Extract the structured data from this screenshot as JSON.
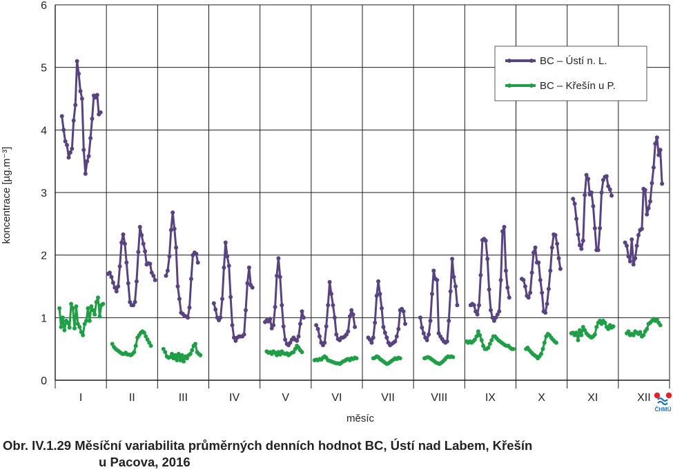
{
  "caption": {
    "line1": "Obr. IV.1.29  Měsíční variabilita průměrných denních hodnot BC, Ústí nad Labem, Křešín",
    "line2": "u Pacova, 2016"
  },
  "logo": {
    "text": "ČHMÚ"
  },
  "chart_data": {
    "type": "line",
    "xlabel": "měsíc",
    "ylabel": "koncentrace [µg.m⁻³]",
    "ylim": [
      0,
      6
    ],
    "yticks": [
      0,
      1,
      2,
      3,
      4,
      5,
      6
    ],
    "months": [
      "I",
      "II",
      "III",
      "IV",
      "V",
      "VI",
      "VII",
      "VIII",
      "IX",
      "X",
      "XI",
      "XII"
    ],
    "month_days": [
      31,
      29,
      31,
      30,
      31,
      30,
      31,
      31,
      30,
      31,
      30,
      31
    ],
    "grid": true,
    "legend_position": "top-right",
    "series": [
      {
        "name": "BC – Ústí n. L.",
        "color": "#584380",
        "segments": [
          {
            "month": 1,
            "values": [
              4.22,
              4.0,
              3.82,
              3.76,
              3.56,
              3.64,
              3.7,
              4.15,
              4.4,
              5.1,
              4.9,
              4.62,
              4.5,
              3.68,
              3.3,
              3.5,
              3.58,
              3.87,
              4.18,
              4.55,
              4.52,
              4.56,
              4.25,
              4.28
            ]
          },
          {
            "month": 2,
            "values": [
              1.7,
              1.72,
              1.65,
              1.56,
              1.48,
              1.42,
              1.5,
              1.82,
              2.2,
              2.33,
              2.18,
              1.88,
              1.55,
              1.25,
              1.2,
              1.2,
              1.25,
              1.58,
              2.05,
              2.45,
              2.32,
              2.18,
              2.06,
              1.85,
              1.87,
              1.86,
              1.72,
              1.67,
              1.6
            ]
          },
          {
            "month": 3,
            "values": [
              1.67,
              1.75,
              1.98,
              2.4,
              2.68,
              2.42,
              2.12,
              1.5,
              1.3,
              1.08,
              1.06,
              1.03,
              1.02,
              1.0,
              1.16,
              1.62,
              2.0,
              2.04,
              2.02,
              1.88
            ]
          },
          {
            "month": 4,
            "values": [
              1.23,
              1.13,
              1.0,
              0.96,
              1.0,
              1.3,
              1.8,
              2.2,
              1.98,
              1.83,
              1.33,
              0.88,
              0.68,
              0.63,
              0.68,
              0.7,
              0.7,
              0.7,
              0.73,
              1.12,
              1.55,
              1.8,
              1.52,
              1.48
            ]
          },
          {
            "month": 5,
            "values": [
              0.93,
              0.96,
              0.94,
              0.98,
              0.83,
              0.88,
              1.17,
              1.67,
              1.95,
              1.65,
              1.2,
              0.86,
              0.65,
              0.58,
              0.56,
              0.6,
              0.65,
              0.68,
              0.65,
              0.63,
              0.7,
              0.9,
              1.1,
              1.0
            ]
          },
          {
            "month": 6,
            "values": [
              0.88,
              0.82,
              0.7,
              0.6,
              0.56,
              0.6,
              0.86,
              1.2,
              1.57,
              1.38,
              1.2,
              1.0,
              0.73,
              0.66,
              0.64,
              0.68,
              0.68,
              0.7,
              0.73,
              0.78,
              1.02,
              1.12,
              1.05,
              0.85
            ]
          },
          {
            "month": 7,
            "values": [
              0.68,
              0.65,
              0.6,
              0.68,
              0.92,
              1.35,
              1.58,
              1.38,
              1.15,
              0.85,
              0.76,
              0.68,
              0.6,
              0.56,
              0.58,
              0.6,
              0.62,
              0.7,
              0.82,
              1.12,
              1.14,
              1.1,
              0.9
            ]
          },
          {
            "month": 8,
            "values": [
              1.0,
              0.84,
              0.75,
              0.68,
              0.64,
              0.73,
              0.95,
              1.38,
              1.75,
              1.62,
              1.6,
              0.75,
              0.7,
              0.66,
              0.62,
              0.6,
              0.62,
              0.95,
              1.42,
              1.94,
              1.65,
              1.5,
              1.2
            ]
          },
          {
            "month": 9,
            "values": [
              1.2,
              1.22,
              1.2,
              1.1,
              1.05,
              1.2,
              1.68,
              2.24,
              2.26,
              2.23,
              1.94,
              1.45,
              1.12,
              1.0,
              0.95,
              1.0,
              1.05,
              1.1,
              1.6,
              2.38,
              2.45,
              1.75,
              1.48,
              1.32
            ]
          },
          {
            "month": 10,
            "values": [
              1.62,
              1.6,
              1.5,
              1.35,
              1.32,
              1.4,
              1.72,
              2.04,
              2.12,
              1.88,
              1.88,
              1.6,
              1.4,
              1.1,
              1.08,
              1.22,
              1.46,
              1.75,
              2.12,
              2.33,
              2.32,
              2.18,
              1.95,
              1.78
            ]
          },
          {
            "month": 11,
            "values": [
              2.9,
              2.82,
              2.58,
              2.33,
              2.16,
              2.1,
              2.23,
              2.96,
              3.28,
              3.22,
              2.97,
              3.0,
              2.78,
              2.43,
              2.08,
              2.08,
              2.43,
              3.0,
              3.2,
              3.25,
              3.26,
              3.1,
              3.05,
              2.95
            ]
          },
          {
            "month": 12,
            "values": [
              2.2,
              2.15,
              1.98,
              1.9,
              2.25,
              1.85,
              1.95,
              2.15,
              2.32,
              2.4,
              2.42,
              3.06,
              3.04,
              2.65,
              2.75,
              2.86,
              3.15,
              3.4,
              3.78,
              3.88,
              3.6,
              3.68,
              3.14
            ]
          }
        ]
      },
      {
        "name": "BC – Křešín u P.",
        "color": "#1f9e46",
        "segments": [
          {
            "month": 1,
            "values": [
              1.15,
              0.85,
              1.0,
              0.8,
              0.95,
              0.92,
              0.84,
              1.22,
              1.15,
              0.83,
              1.18,
              0.9,
              0.85,
              0.77,
              0.72,
              0.9,
              0.95,
              1.15,
              0.95,
              1.18,
              1.12,
              1.05,
              1.25,
              1.32,
              1.02,
              1.2,
              1.22
            ]
          },
          {
            "month": 2,
            "values": [
              0.58,
              0.53,
              0.5,
              0.48,
              0.46,
              0.44,
              0.42,
              0.42,
              0.44,
              0.41,
              0.41,
              0.4,
              0.42,
              0.45,
              0.55,
              0.68,
              0.72,
              0.76,
              0.78,
              0.76,
              0.7,
              0.65,
              0.6,
              0.55
            ]
          },
          {
            "month": 3,
            "values": [
              0.5,
              0.45,
              0.38,
              0.36,
              0.37,
              0.42,
              0.35,
              0.4,
              0.32,
              0.42,
              0.32,
              0.4,
              0.3,
              0.38,
              0.35,
              0.4,
              0.42,
              0.48,
              0.55,
              0.58,
              0.45,
              0.42,
              0.4
            ]
          },
          {
            "month": 5,
            "values": [
              0.46,
              0.44,
              0.45,
              0.42,
              0.46,
              0.44,
              0.4,
              0.45,
              0.41,
              0.46,
              0.43,
              0.42,
              0.43,
              0.4,
              0.42,
              0.44,
              0.45,
              0.5,
              0.55,
              0.52,
              0.48,
              0.45
            ]
          },
          {
            "month": 6,
            "values": [
              0.32,
              0.33,
              0.32,
              0.34,
              0.33,
              0.36,
              0.38,
              0.36,
              0.32,
              0.31,
              0.3,
              0.29,
              0.28,
              0.27,
              0.27,
              0.26,
              0.28,
              0.3,
              0.31,
              0.33,
              0.34,
              0.32,
              0.35,
              0.34,
              0.36,
              0.35
            ]
          },
          {
            "month": 7,
            "values": [
              0.35,
              0.36,
              0.38,
              0.37,
              0.34,
              0.32,
              0.3,
              0.28,
              0.26,
              0.27,
              0.29,
              0.31,
              0.33,
              0.35,
              0.34,
              0.36,
              0.35
            ]
          },
          {
            "month": 8,
            "values": [
              0.35,
              0.36,
              0.37,
              0.36,
              0.34,
              0.32,
              0.3,
              0.28,
              0.27,
              0.26,
              0.28,
              0.3,
              0.33,
              0.36,
              0.38,
              0.37,
              0.38,
              0.37
            ]
          },
          {
            "month": 9,
            "values": [
              0.62,
              0.6,
              0.62,
              0.6,
              0.62,
              0.65,
              0.7,
              0.78,
              0.72,
              0.64,
              0.55,
              0.5,
              0.5,
              0.52,
              0.58,
              0.64,
              0.7,
              0.7,
              0.67,
              0.64,
              0.62,
              0.6,
              0.58,
              0.56,
              0.55,
              0.55,
              0.52,
              0.5,
              0.5
            ]
          },
          {
            "month": 10,
            "values": [
              0.5,
              0.52,
              0.48,
              0.45,
              0.42,
              0.4,
              0.38,
              0.35,
              0.38,
              0.42,
              0.5,
              0.6,
              0.7,
              0.74,
              0.72,
              0.68,
              0.65,
              0.62,
              0.6
            ]
          },
          {
            "month": 11,
            "values": [
              0.75,
              0.76,
              0.72,
              0.76,
              0.64,
              0.8,
              0.72,
              0.85,
              0.8,
              0.75,
              0.72,
              0.7,
              0.68,
              0.7,
              0.73,
              0.85,
              0.92,
              0.95,
              0.9,
              0.95,
              0.92,
              0.85,
              0.82,
              0.88,
              0.84,
              0.86
            ]
          },
          {
            "month": 12,
            "values": [
              0.75,
              0.78,
              0.72,
              0.74,
              0.72,
              0.78,
              0.76,
              0.74,
              0.77,
              0.7,
              0.72,
              0.78,
              0.82,
              0.9,
              0.92,
              0.95,
              0.98,
              0.95,
              0.97,
              0.92,
              0.88
            ]
          }
        ]
      }
    ]
  }
}
